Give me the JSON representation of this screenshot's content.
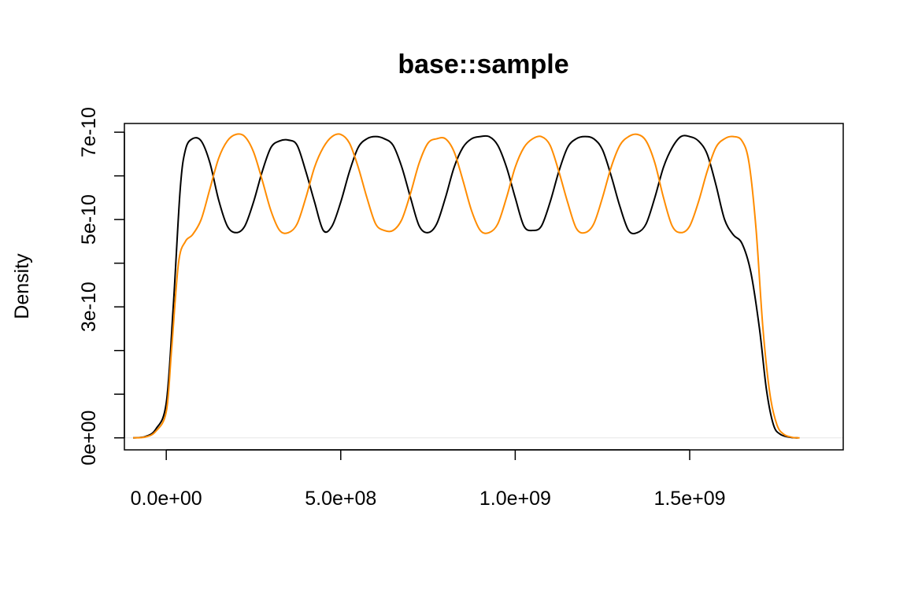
{
  "chart_data": {
    "type": "line",
    "title": "base::sample",
    "xlabel": "",
    "ylabel": "Density",
    "xlim": [
      -120000000,
      1940000000
    ],
    "ylim": [
      -2.75e-11,
      7.2e-10
    ],
    "x_ticks": [
      0,
      500000000,
      1000000000,
      1500000000
    ],
    "x_tick_labels": [
      "0.0e+00",
      "5.0e+08",
      "1.0e+09",
      "1.5e+09"
    ],
    "y_ticks": [
      0,
      1e-10,
      2e-10,
      3e-10,
      4e-10,
      5e-10,
      6e-10,
      7e-10
    ],
    "y_labeled_ticks": [
      0,
      3e-10,
      5e-10,
      7e-10
    ],
    "y_tick_labels": [
      "0e+00",
      "3e-10",
      "5e-10",
      "7e-10"
    ],
    "grid": false,
    "series": [
      {
        "color": "#000000",
        "points": [
          [
            -95000000,
            0
          ],
          [
            -60000000,
            3e-12
          ],
          [
            -30000000,
            2e-11
          ],
          [
            0,
            8e-11
          ],
          [
            20000000,
            3e-10
          ],
          [
            40000000,
            5.7e-10
          ],
          [
            55000000,
            6.6e-10
          ],
          [
            75000000,
            6.85e-10
          ],
          [
            100000000,
            6.8e-10
          ],
          [
            125000000,
            6.3e-10
          ],
          [
            150000000,
            5.45e-10
          ],
          [
            175000000,
            4.85e-10
          ],
          [
            200000000,
            4.7e-10
          ],
          [
            225000000,
            4.85e-10
          ],
          [
            250000000,
            5.4e-10
          ],
          [
            275000000,
            6.1e-10
          ],
          [
            300000000,
            6.65e-10
          ],
          [
            325000000,
            6.8e-10
          ],
          [
            350000000,
            6.82e-10
          ],
          [
            375000000,
            6.7e-10
          ],
          [
            400000000,
            6.1e-10
          ],
          [
            425000000,
            5.4e-10
          ],
          [
            450000000,
            4.75e-10
          ],
          [
            475000000,
            4.85e-10
          ],
          [
            500000000,
            5.4e-10
          ],
          [
            525000000,
            6.1e-10
          ],
          [
            550000000,
            6.65e-10
          ],
          [
            575000000,
            6.85e-10
          ],
          [
            600000000,
            6.9e-10
          ],
          [
            625000000,
            6.85e-10
          ],
          [
            650000000,
            6.7e-10
          ],
          [
            675000000,
            6.2e-10
          ],
          [
            700000000,
            5.5e-10
          ],
          [
            725000000,
            4.85e-10
          ],
          [
            750000000,
            4.7e-10
          ],
          [
            775000000,
            4.9e-10
          ],
          [
            800000000,
            5.5e-10
          ],
          [
            825000000,
            6.2e-10
          ],
          [
            850000000,
            6.65e-10
          ],
          [
            875000000,
            6.85e-10
          ],
          [
            900000000,
            6.9e-10
          ],
          [
            925000000,
            6.9e-10
          ],
          [
            950000000,
            6.7e-10
          ],
          [
            975000000,
            6.2e-10
          ],
          [
            1000000000,
            5.5e-10
          ],
          [
            1025000000,
            4.85e-10
          ],
          [
            1050000000,
            4.75e-10
          ],
          [
            1075000000,
            4.85e-10
          ],
          [
            1100000000,
            5.4e-10
          ],
          [
            1125000000,
            6.1e-10
          ],
          [
            1150000000,
            6.65e-10
          ],
          [
            1175000000,
            6.85e-10
          ],
          [
            1200000000,
            6.9e-10
          ],
          [
            1225000000,
            6.85e-10
          ],
          [
            1250000000,
            6.6e-10
          ],
          [
            1275000000,
            6e-10
          ],
          [
            1300000000,
            5.3e-10
          ],
          [
            1325000000,
            4.75e-10
          ],
          [
            1350000000,
            4.7e-10
          ],
          [
            1375000000,
            4.9e-10
          ],
          [
            1400000000,
            5.5e-10
          ],
          [
            1425000000,
            6.2e-10
          ],
          [
            1450000000,
            6.65e-10
          ],
          [
            1475000000,
            6.9e-10
          ],
          [
            1500000000,
            6.9e-10
          ],
          [
            1525000000,
            6.8e-10
          ],
          [
            1550000000,
            6.5e-10
          ],
          [
            1575000000,
            5.8e-10
          ],
          [
            1600000000,
            5e-10
          ],
          [
            1625000000,
            4.65e-10
          ],
          [
            1650000000,
            4.45e-10
          ],
          [
            1675000000,
            3.8e-10
          ],
          [
            1700000000,
            2.5e-10
          ],
          [
            1720000000,
            1.1e-10
          ],
          [
            1740000000,
            3e-11
          ],
          [
            1760000000,
            8e-12
          ],
          [
            1790000000,
            1e-12
          ],
          [
            1810000000,
            0
          ]
        ]
      },
      {
        "color": "#ff8c00",
        "points": [
          [
            -95000000,
            0
          ],
          [
            -60000000,
            2e-12
          ],
          [
            -30000000,
            1.5e-11
          ],
          [
            0,
            6e-11
          ],
          [
            15000000,
            2e-10
          ],
          [
            35000000,
            4e-10
          ],
          [
            55000000,
            4.5e-10
          ],
          [
            75000000,
            4.65e-10
          ],
          [
            100000000,
            5e-10
          ],
          [
            125000000,
            5.7e-10
          ],
          [
            150000000,
            6.4e-10
          ],
          [
            175000000,
            6.8e-10
          ],
          [
            200000000,
            6.95e-10
          ],
          [
            225000000,
            6.9e-10
          ],
          [
            250000000,
            6.55e-10
          ],
          [
            275000000,
            5.9e-10
          ],
          [
            300000000,
            5.2e-10
          ],
          [
            325000000,
            4.75e-10
          ],
          [
            350000000,
            4.7e-10
          ],
          [
            375000000,
            4.9e-10
          ],
          [
            400000000,
            5.5e-10
          ],
          [
            425000000,
            6.2e-10
          ],
          [
            450000000,
            6.65e-10
          ],
          [
            475000000,
            6.9e-10
          ],
          [
            500000000,
            6.95e-10
          ],
          [
            525000000,
            6.75e-10
          ],
          [
            550000000,
            6.2e-10
          ],
          [
            575000000,
            5.5e-10
          ],
          [
            600000000,
            4.9e-10
          ],
          [
            625000000,
            4.75e-10
          ],
          [
            650000000,
            4.75e-10
          ],
          [
            675000000,
            5e-10
          ],
          [
            700000000,
            5.6e-10
          ],
          [
            725000000,
            6.3e-10
          ],
          [
            750000000,
            6.75e-10
          ],
          [
            775000000,
            6.85e-10
          ],
          [
            800000000,
            6.85e-10
          ],
          [
            825000000,
            6.55e-10
          ],
          [
            850000000,
            5.9e-10
          ],
          [
            875000000,
            5.2e-10
          ],
          [
            900000000,
            4.75e-10
          ],
          [
            925000000,
            4.7e-10
          ],
          [
            950000000,
            4.9e-10
          ],
          [
            975000000,
            5.5e-10
          ],
          [
            1000000000,
            6.2e-10
          ],
          [
            1025000000,
            6.65e-10
          ],
          [
            1050000000,
            6.85e-10
          ],
          [
            1075000000,
            6.9e-10
          ],
          [
            1100000000,
            6.7e-10
          ],
          [
            1125000000,
            6.1e-10
          ],
          [
            1150000000,
            5.4e-10
          ],
          [
            1175000000,
            4.8e-10
          ],
          [
            1200000000,
            4.7e-10
          ],
          [
            1225000000,
            4.9e-10
          ],
          [
            1250000000,
            5.5e-10
          ],
          [
            1275000000,
            6.2e-10
          ],
          [
            1300000000,
            6.7e-10
          ],
          [
            1325000000,
            6.9e-10
          ],
          [
            1350000000,
            6.95e-10
          ],
          [
            1375000000,
            6.8e-10
          ],
          [
            1400000000,
            6.3e-10
          ],
          [
            1425000000,
            5.5e-10
          ],
          [
            1450000000,
            4.85e-10
          ],
          [
            1475000000,
            4.7e-10
          ],
          [
            1500000000,
            4.85e-10
          ],
          [
            1525000000,
            5.4e-10
          ],
          [
            1550000000,
            6.1e-10
          ],
          [
            1575000000,
            6.65e-10
          ],
          [
            1600000000,
            6.85e-10
          ],
          [
            1625000000,
            6.9e-10
          ],
          [
            1650000000,
            6.8e-10
          ],
          [
            1670000000,
            6.3e-10
          ],
          [
            1690000000,
            4.8e-10
          ],
          [
            1710000000,
            2.5e-10
          ],
          [
            1730000000,
            1e-10
          ],
          [
            1750000000,
            3e-11
          ],
          [
            1770000000,
            8e-12
          ],
          [
            1795000000,
            1e-12
          ],
          [
            1815000000,
            0
          ]
        ]
      }
    ]
  }
}
